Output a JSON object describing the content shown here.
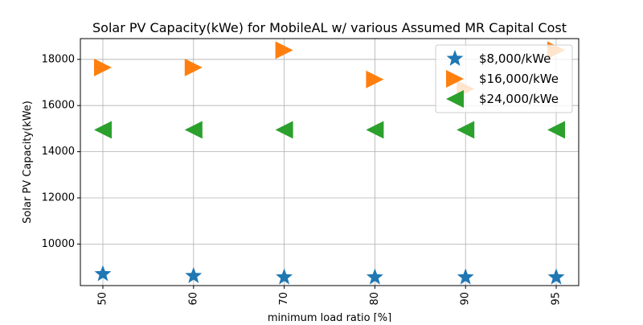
{
  "chart_data": {
    "type": "scatter",
    "title": "Solar PV Capacity(kWe) for MobileAL w/ various Assumed MR Capital Cost",
    "xlabel": "minimum load ratio [%]",
    "ylabel": "Solar PV Capacity(kWe)",
    "categories": [
      "50",
      "60",
      "70",
      "80",
      "90",
      "95"
    ],
    "ylim": [
      8200,
      18900
    ],
    "yticks": [
      10000,
      12000,
      14000,
      16000,
      18000
    ],
    "yticklabels": [
      "10000",
      "12000",
      "14000",
      "16000",
      "18000"
    ],
    "grid": true,
    "legend_position": "top-right",
    "series": [
      {
        "name": "$8,000/kWe",
        "marker": "star",
        "color": "#1f77b4",
        "values": [
          8700,
          8620,
          8560,
          8560,
          8560,
          8560
        ]
      },
      {
        "name": "$16,000/kWe",
        "marker": "triangle-right",
        "color": "#ff7f0e",
        "values": [
          17650,
          17650,
          18400,
          17130,
          16720,
          18400
        ]
      },
      {
        "name": "$24,000/kWe",
        "marker": "triangle-left",
        "color": "#2ca02c",
        "values": [
          14950,
          14950,
          14950,
          14950,
          14950,
          14950
        ]
      }
    ]
  }
}
